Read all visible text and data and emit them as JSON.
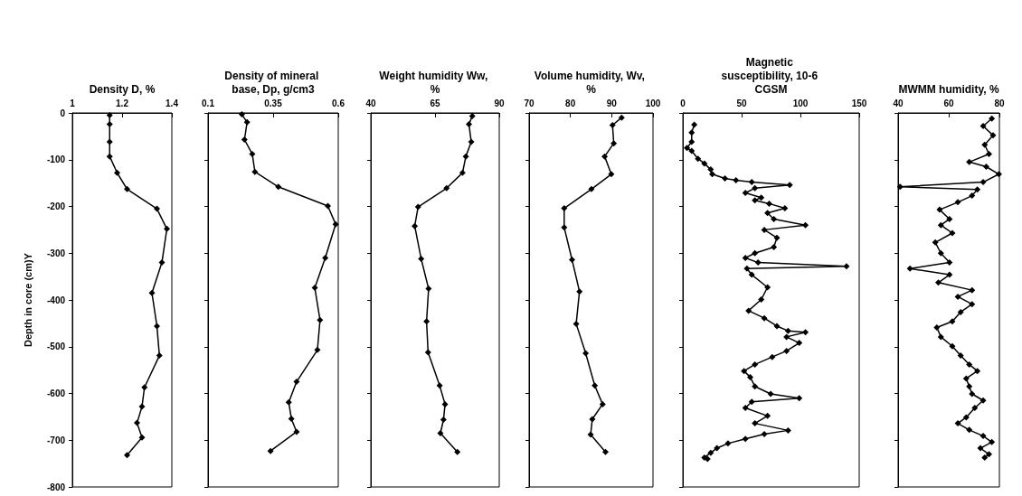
{
  "chart_data": [
    {
      "type": "line",
      "xlabel": "Density D, %",
      "ylabel": "Depth in core (cm)Y",
      "xlim": [
        1,
        1.4
      ],
      "xticks": [
        1,
        1.2,
        1.4
      ],
      "ylim": [
        -800,
        0
      ],
      "yticks": [
        -800,
        -700,
        -600,
        -500,
        -400,
        -300,
        -200,
        -100,
        0
      ],
      "marker": "diamond",
      "color": "#000000",
      "x": [
        1.15,
        1.15,
        1.15,
        1.15,
        1.18,
        1.22,
        1.34,
        1.38,
        1.36,
        1.32,
        1.34,
        1.35,
        1.29,
        1.28,
        1.26,
        1.28,
        1.22
      ],
      "values": [
        -5,
        -24,
        -62,
        -93,
        -128,
        -163,
        -205,
        -248,
        -320,
        -385,
        -456,
        -519,
        -587,
        -628,
        -663,
        -694,
        -732
      ]
    },
    {
      "type": "line",
      "xlabel": "Density of mineral base, Dp, g/cm3",
      "tick_labels": "x",
      "xlim": [
        0.1,
        0.6
      ],
      "xticks": [
        0.1,
        0.35,
        0.6
      ],
      "ylim": [
        -800,
        0
      ],
      "yticks": [
        -800,
        -700,
        -600,
        -500,
        -400,
        -300,
        -200,
        -100,
        0
      ],
      "marker": "diamond",
      "color": "#000000",
      "x": [
        0.23,
        0.25,
        0.24,
        0.27,
        0.28,
        0.37,
        0.56,
        0.59,
        0.55,
        0.51,
        0.53,
        0.52,
        0.44,
        0.41,
        0.42,
        0.44,
        0.34
      ],
      "values": [
        -3,
        -20,
        -57,
        -88,
        -126,
        -158,
        -199,
        -238,
        -310,
        -374,
        -443,
        -507,
        -575,
        -619,
        -654,
        -682,
        -723
      ]
    },
    {
      "type": "line",
      "xlabel": "Weight humidity Ww, %",
      "tick_labels": "x",
      "xlim": [
        40,
        90
      ],
      "xticks": [
        40,
        65,
        90
      ],
      "ylim": [
        -800,
        0
      ],
      "yticks": [
        -800,
        -700,
        -600,
        -500,
        -400,
        -300,
        -200,
        -100,
        0
      ],
      "marker": "diamond",
      "color": "#000000",
      "x": [
        79.5,
        78.2,
        79.1,
        77.0,
        75.7,
        69.5,
        58.4,
        57.1,
        59.6,
        62.5,
        61.7,
        62.3,
        66.8,
        68.9,
        68.3,
        67.1,
        73.7
      ],
      "values": [
        -7,
        -24,
        -62,
        -93,
        -128,
        -161,
        -201,
        -242,
        -312,
        -376,
        -446,
        -512,
        -583,
        -623,
        -656,
        -685,
        -725
      ]
    },
    {
      "type": "line",
      "xlabel": "Volume humidity, Wv, %",
      "tick_labels": "x",
      "xlim": [
        70,
        100
      ],
      "xticks": [
        70,
        80,
        90,
        100
      ],
      "ylim": [
        -800,
        0
      ],
      "yticks": [
        -800,
        -700,
        -600,
        -500,
        -400,
        -300,
        -200,
        -100,
        0
      ],
      "marker": "diamond",
      "color": "#000000",
      "x": [
        92.4,
        90.2,
        90.5,
        88.3,
        89.9,
        85.1,
        78.5,
        78.5,
        80.4,
        82.2,
        81.4,
        83.7,
        85.9,
        87.8,
        85.3,
        84.9,
        88.5
      ],
      "values": [
        -10,
        -26,
        -65,
        -93,
        -131,
        -163,
        -204,
        -245,
        -314,
        -382,
        -451,
        -514,
        -583,
        -623,
        -655,
        -688,
        -725
      ]
    },
    {
      "type": "line",
      "xlabel": "Magnetic susceptibility, 10-6 CGSM",
      "tick_labels": "x",
      "xlim": [
        0,
        150
      ],
      "xticks": [
        0,
        50,
        100,
        150
      ],
      "ylim": [
        -800,
        0
      ],
      "yticks": [
        -800,
        -700,
        -600,
        -500,
        -400,
        -300,
        -200,
        -100,
        0
      ],
      "marker": "diamond",
      "color": "#000000",
      "x": [
        9.7,
        7.5,
        7.5,
        3.5,
        7.5,
        12.9,
        18.3,
        23.7,
        25,
        35.8,
        45.2,
        58.6,
        90.9,
        61.3,
        53.2,
        66.7,
        61.3,
        73.4,
        86.8,
        72,
        77.4,
        104.3,
        69.3,
        80,
        77.4,
        61.3,
        53.2,
        64,
        139.2,
        54.5,
        58.6,
        72,
        66.7,
        55.9,
        69.3,
        80,
        89.5,
        104.3,
        88.2,
        99,
        88.2,
        76,
        61.3,
        52,
        57.3,
        61.3,
        74.7,
        99,
        58.6,
        53.2,
        72,
        61.3,
        89.5,
        69.3,
        53.2,
        38.4,
        29,
        23.7,
        18.3,
        21
      ],
      "values": [
        -25,
        -42,
        -62,
        -75,
        -81,
        -98,
        -108,
        -121,
        -131,
        -140,
        -144,
        -148,
        -154,
        -161,
        -171,
        -181,
        -187,
        -194,
        -204,
        -214,
        -227,
        -240,
        -250,
        -267,
        -287,
        -300,
        -310,
        -320,
        -328,
        -333,
        -346,
        -373,
        -399,
        -423,
        -439,
        -456,
        -466,
        -469,
        -479,
        -492,
        -509,
        -522,
        -538,
        -552,
        -565,
        -585,
        -601,
        -610,
        -618,
        -631,
        -648,
        -664,
        -679,
        -687,
        -697,
        -707,
        -717,
        -727,
        -737,
        -740
      ]
    },
    {
      "type": "line",
      "xlabel": "MWMM humidity, %",
      "tick_labels": "x",
      "xlim": [
        40,
        80
      ],
      "xticks": [
        40,
        60,
        80
      ],
      "ylim": [
        -800,
        0
      ],
      "yticks": [
        -800,
        -700,
        -600,
        -500,
        -400,
        -300,
        -200,
        -100,
        0
      ],
      "marker": "diamond",
      "color": "#000000",
      "x": [
        77,
        73.6,
        77.5,
        74.2,
        75.9,
        68.1,
        74.8,
        79.8,
        73.6,
        40.8,
        71.3,
        69.2,
        63.6,
        56.4,
        60.3,
        56.9,
        61.4,
        54.7,
        56.9,
        60.3,
        44.7,
        60.3,
        55.9,
        69.2,
        63.6,
        69.2,
        64.7,
        61.4,
        55.3,
        56.9,
        61.4,
        64.7,
        68.1,
        71.3,
        66.9,
        68.1,
        69.2,
        73.6,
        70.3,
        66.9,
        63.6,
        68.1,
        73.6,
        77,
        72.5,
        75.9,
        74.2
      ],
      "values": [
        -12,
        -28,
        -48,
        -68,
        -88,
        -105,
        -115,
        -131,
        -148,
        -158,
        -164,
        -177,
        -191,
        -207,
        -227,
        -240,
        -257,
        -277,
        -300,
        -320,
        -333,
        -346,
        -363,
        -379,
        -393,
        -409,
        -426,
        -446,
        -459,
        -479,
        -499,
        -519,
        -538,
        -552,
        -568,
        -585,
        -601,
        -615,
        -631,
        -651,
        -664,
        -678,
        -691,
        -704,
        -717,
        -730,
        -737
      ]
    }
  ]
}
